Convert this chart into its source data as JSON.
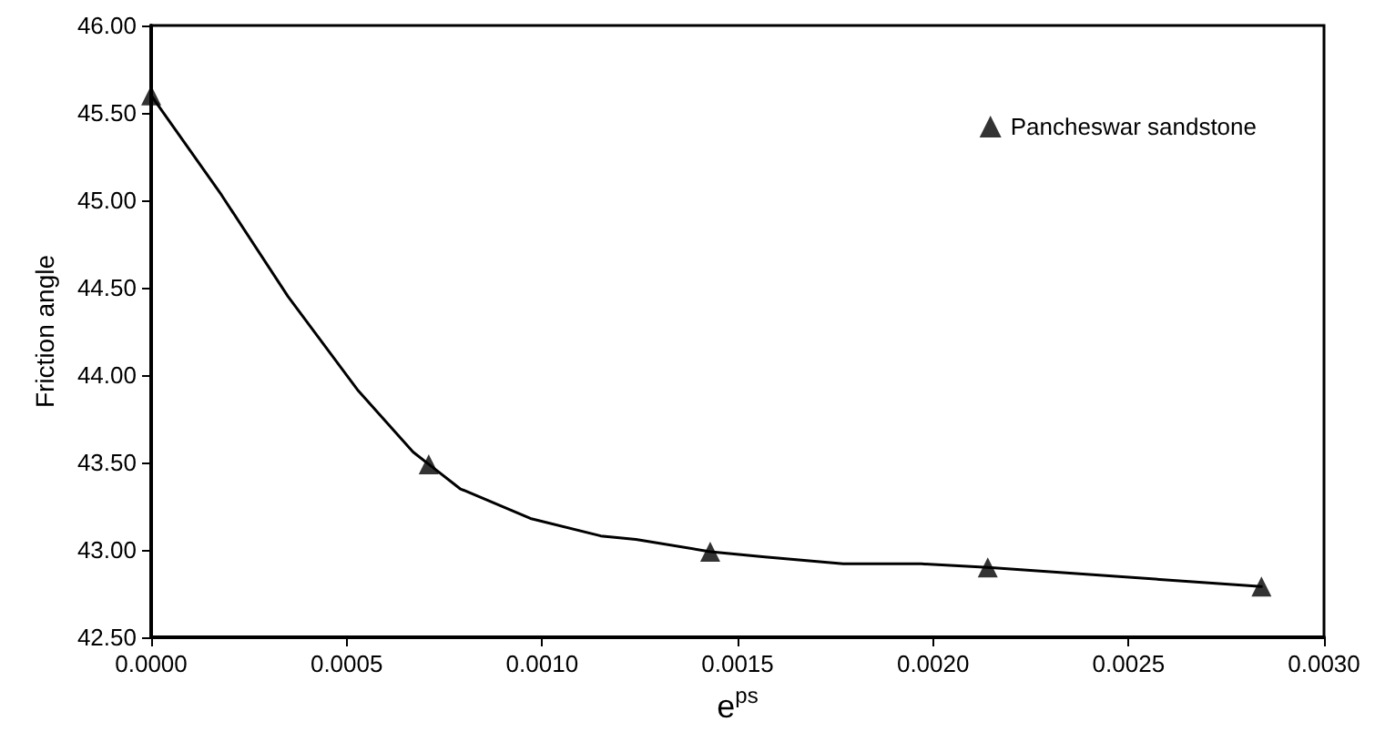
{
  "chart_data": {
    "type": "line",
    "xlabel": "e$^{ps}$",
    "ylabel": "Friction angle",
    "xlim": [
      0,
      0.003
    ],
    "ylim": [
      42.5,
      46
    ],
    "xticks": [
      {
        "value": 0,
        "label": "0.0000"
      },
      {
        "value": 0.0005,
        "label": "0.0005"
      },
      {
        "value": 0.001,
        "label": "0.0010"
      },
      {
        "value": 0.0015,
        "label": "0.0015"
      },
      {
        "value": 0.002,
        "label": "0.0020"
      },
      {
        "value": 0.0025,
        "label": "0.0025"
      },
      {
        "value": 0.003,
        "label": "0.0030"
      }
    ],
    "yticks": [
      {
        "value": 42.5,
        "label": "42.50"
      },
      {
        "value": 43,
        "label": "43.00"
      },
      {
        "value": 43.5,
        "label": "43.50"
      },
      {
        "value": 44,
        "label": "44.00"
      },
      {
        "value": 44.5,
        "label": "44.50"
      },
      {
        "value": 45,
        "label": "45.00"
      },
      {
        "value": 45.5,
        "label": "45.50"
      },
      {
        "value": 46,
        "label": "46.00"
      }
    ],
    "grid": false,
    "legend": "top right",
    "series": [
      {
        "color": "#000000",
        "marker": "none",
        "line_style": "solid",
        "x": [
          0,
          0.00018,
          0.00035,
          0.00053,
          0.00067,
          0.00071,
          0.00079,
          0.00097,
          0.00115,
          0.00124,
          0.00143,
          0.00157,
          0.00177,
          0.00197,
          0.00214,
          0.00284
        ],
        "values": [
          45.6,
          45.03,
          44.45,
          43.91,
          43.56,
          43.49,
          43.35,
          43.18,
          43.08,
          43.06,
          42.99,
          42.96,
          42.92,
          42.92,
          42.9,
          42.79
        ]
      },
      {
        "type": "scatter",
        "name": "Pancheswar sandstone",
        "color": "#000000",
        "marker": "triangle",
        "x": [
          0,
          0.00071,
          0.00143,
          0.00214,
          0.00284
        ],
        "values": [
          45.6,
          43.49,
          42.99,
          42.9,
          42.79
        ]
      }
    ]
  }
}
